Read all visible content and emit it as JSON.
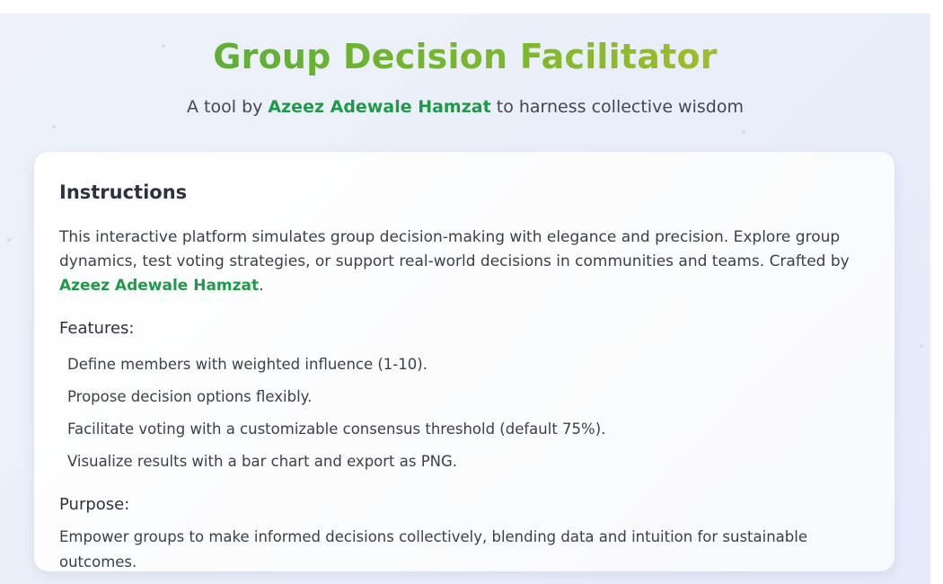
{
  "header": {
    "title": "Group Decision Facilitator",
    "subtitle_prefix": "A tool by ",
    "author": "Azeez Adewale Hamzat",
    "subtitle_suffix": " to harness collective wisdom"
  },
  "instructions": {
    "heading": "Instructions",
    "intro_text": "This interactive platform simulates group decision-making with elegance and precision. Explore group dynamics, test voting strategies, or support real-world decisions in communities and teams. Crafted by ",
    "intro_author": "Azeez Adewale Hamzat",
    "intro_end": ".",
    "features_heading": "Features:",
    "features": [
      "Define members with weighted influence (1-10).",
      "Propose decision options flexibly.",
      "Facilitate voting with a customizable consensus threshold (default 75%).",
      "Visualize results with a bar chart and export as PNG."
    ],
    "purpose_heading": "Purpose:",
    "purpose_text": "Empower groups to make informed decisions collectively, blending data and intuition for sustainable outcomes."
  },
  "colors": {
    "author_green": "#1f9a4a",
    "title_gradient_start": "#4aa83c",
    "title_gradient_end": "#c6c21d"
  }
}
